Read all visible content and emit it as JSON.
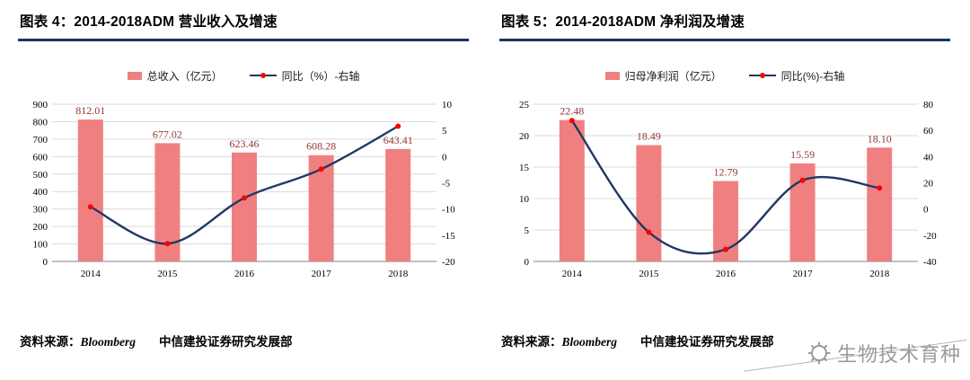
{
  "figure4": {
    "title": "图表 4：2014-2018ADM 营业收入及增速",
    "source": {
      "label": "资料来源：",
      "vendor": "Bloomberg",
      "dept": "中信建投证券研究发展部"
    }
  },
  "figure5": {
    "title": "图表 5：2014-2018ADM 净利润及增速",
    "source": {
      "label": "资料来源：",
      "vendor": "Bloomberg",
      "dept": "中信建投证券研究发展部"
    }
  },
  "watermark": {
    "text": "生物技术育种"
  },
  "theme": {
    "bar_color": "#F08080",
    "line_color": "#1F3864",
    "marker_color": "#FF0000",
    "title_rule_color": "#17375E",
    "data_label_color": "#943634",
    "gridline_color": "#D9D9D9",
    "axis_color": "#808080"
  },
  "chart_data": [
    {
      "type": "bar",
      "subtype": "bar+line combo, dual axis",
      "title": "2014-2018ADM 营业收入及增速",
      "categories": [
        "2014",
        "2015",
        "2016",
        "2017",
        "2018"
      ],
      "series": [
        {
          "name": "总收入（亿元）",
          "type": "bar",
          "axis": "left",
          "values": [
            812.01,
            677.02,
            623.46,
            608.28,
            643.41
          ],
          "labels": [
            "812.01",
            "677.02",
            "623.46",
            "608.28",
            "643.41"
          ],
          "color": "#F08080"
        },
        {
          "name": "同比（%）-右轴",
          "type": "line",
          "axis": "right",
          "values": [
            -9.6,
            -16.6,
            -7.9,
            -2.4,
            5.8
          ],
          "color": "#1F3864",
          "marker_color": "#FF0000",
          "smooth": true
        }
      ],
      "left_axis": {
        "min": 0,
        "max": 900,
        "step": 100
      },
      "right_axis": {
        "min": -20,
        "max": 10,
        "step": 5
      },
      "legend_position": "top",
      "grid": true
    },
    {
      "type": "bar",
      "subtype": "bar+line combo, dual axis",
      "title": "2014-2018ADM 净利润及增速",
      "categories": [
        "2014",
        "2015",
        "2016",
        "2017",
        "2018"
      ],
      "series": [
        {
          "name": "归母净利润（亿元）",
          "type": "bar",
          "axis": "left",
          "values": [
            22.48,
            18.49,
            12.79,
            15.59,
            18.1
          ],
          "labels": [
            "22.48",
            "18.49",
            "12.79",
            "15.59",
            "18.10"
          ],
          "color": "#F08080"
        },
        {
          "name": "同比(%)-右轴",
          "type": "line",
          "axis": "right",
          "values": [
            67.5,
            -17.7,
            -30.8,
            21.9,
            16.1
          ],
          "color": "#1F3864",
          "marker_color": "#FF0000",
          "smooth": true
        }
      ],
      "left_axis": {
        "min": 0,
        "max": 25,
        "step": 5
      },
      "right_axis": {
        "min": -40,
        "max": 80,
        "step": 20
      },
      "legend_position": "top",
      "grid": true
    }
  ]
}
